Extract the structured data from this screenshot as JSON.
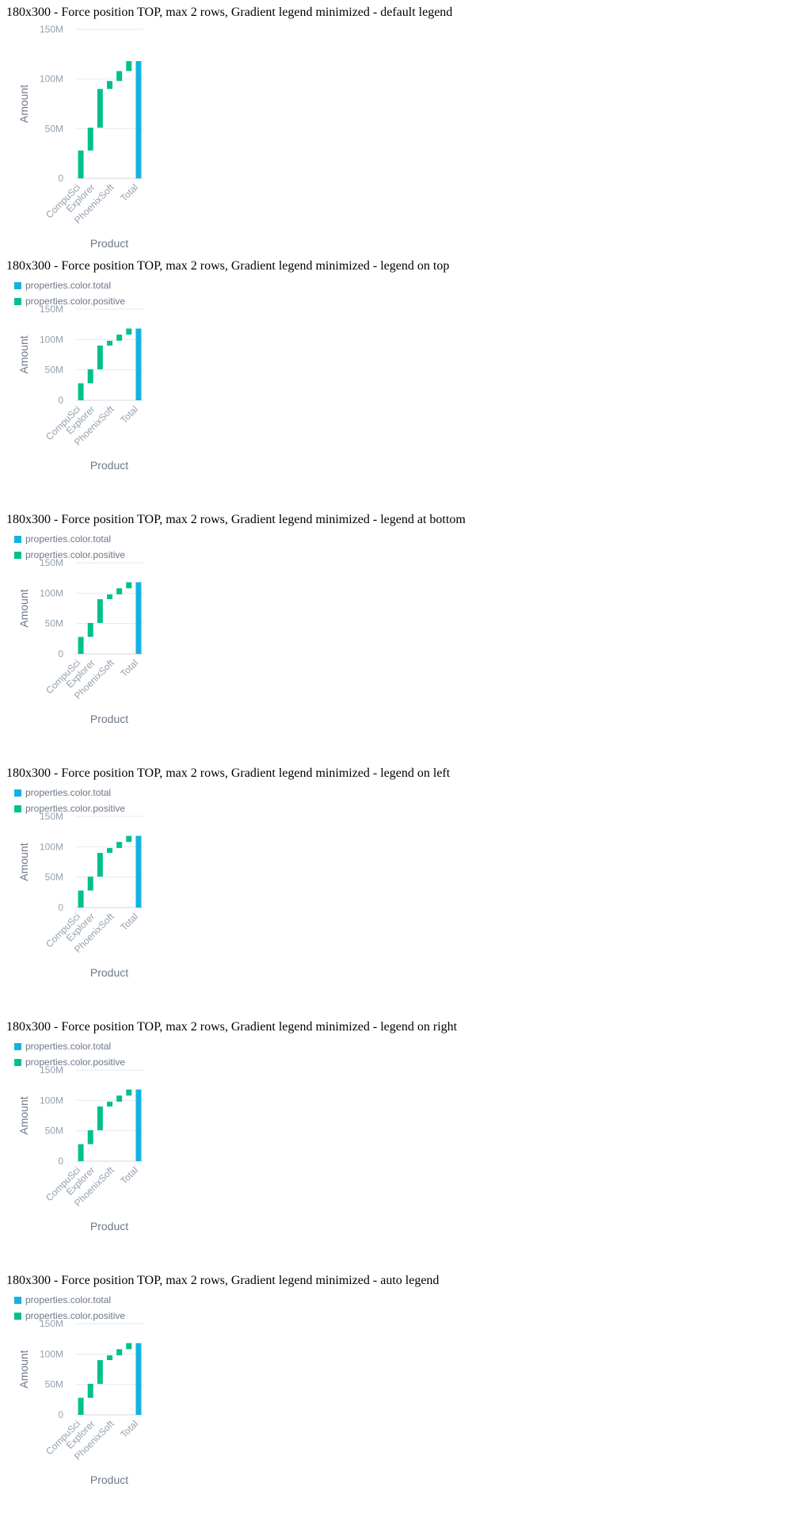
{
  "colors": {
    "positive": "#00c18c",
    "total": "#14b2e2",
    "grid": "#e6e9ee",
    "axis": "#95a0ae"
  },
  "legend": {
    "items": [
      {
        "label": "properties.color.total",
        "color": "#14b2e2"
      },
      {
        "label": "properties.color.positive",
        "color": "#00c18c"
      }
    ]
  },
  "stories": [
    {
      "title": "180x300 - Force position TOP, max 2 rows, Gradient legend minimized - default legend",
      "show_legend": false
    },
    {
      "title": "180x300 - Force position TOP, max 2 rows, Gradient legend minimized - legend on top",
      "show_legend": true
    },
    {
      "title": "180x300 - Force position TOP, max 2 rows, Gradient legend minimized - legend at bottom",
      "show_legend": true
    },
    {
      "title": "180x300 - Force position TOP, max 2 rows, Gradient legend minimized - legend on left",
      "show_legend": true
    },
    {
      "title": "180x300 - Force position TOP, max 2 rows, Gradient legend minimized - legend on right",
      "show_legend": true
    },
    {
      "title": "180x300 - Force position TOP, max 2 rows, Gradient legend minimized - auto legend",
      "show_legend": true
    }
  ],
  "chart_data": {
    "type": "bar",
    "subtype": "waterfall",
    "xlabel": "Product",
    "ylabel": "Amount",
    "x_tick_labels": [
      "CompuSci",
      "Explorer",
      "PhoenixSoft",
      "Total"
    ],
    "y_tick_labels": [
      "0",
      "50M",
      "100M",
      "150M"
    ],
    "y_ticks": [
      0,
      50000000,
      100000000,
      150000000
    ],
    "ylim": [
      0,
      150000000
    ],
    "grid": true,
    "legend_position": "top",
    "bars": [
      {
        "kind": "positive",
        "start": 0,
        "end": 28000000
      },
      {
        "kind": "positive",
        "start": 28000000,
        "end": 51000000
      },
      {
        "kind": "positive",
        "start": 51000000,
        "end": 90000000
      },
      {
        "kind": "positive",
        "start": 90000000,
        "end": 98000000
      },
      {
        "kind": "positive",
        "start": 98000000,
        "end": 108000000
      },
      {
        "kind": "positive",
        "start": 108000000,
        "end": 118000000
      },
      {
        "kind": "total",
        "start": 0,
        "end": 118000000
      }
    ]
  }
}
